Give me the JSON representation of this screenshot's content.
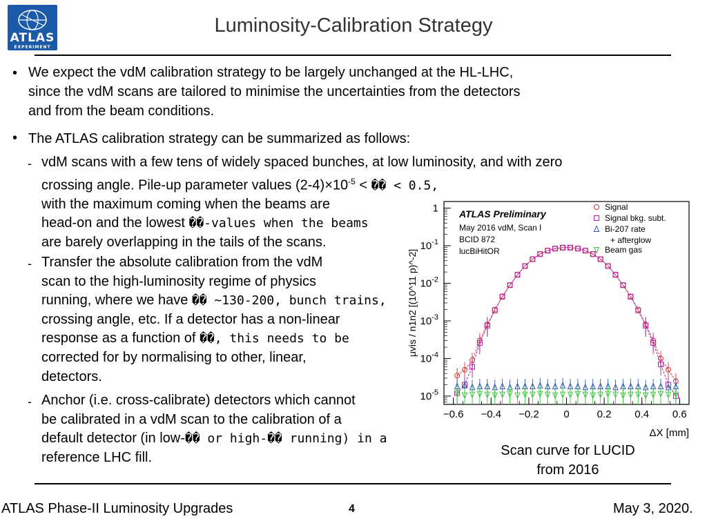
{
  "header": {
    "logo_text": "ATLAS",
    "logo_subtext": "EXPERIMENT",
    "title": "Luminosity-Calibration Strategy"
  },
  "body": {
    "bullet_symbol": "•",
    "dash_symbol": "-",
    "bullet1": {
      "lines": [
        "We expect the vdM calibration strategy to be largely unchanged at the HL-LHC,",
        "since the vdM scans are tailored to minimise the uncertainties from the detectors",
        "and from the beam conditions."
      ]
    },
    "bullet2": {
      "text": "The ATLAS calibration strategy can be summarized as follows:"
    },
    "sub1": {
      "line1": "vdM scans with a few tens of widely spaced bunches, at low luminosity, and with zero",
      "line2_a": "crossing angle. Pile-up parameter values (2-4)×10",
      "line2_sup": "-5",
      "line2_b": " < ",
      "line2_mono": "�� < 0.5,",
      "line3": "with the maximum coming when the beams are",
      "line4_a": "head-on and the lowest ",
      "line4_mono": "��-values when the beams",
      "line5": "are barely overlapping in the tails of the scans."
    },
    "sub2": {
      "line1": "Transfer the absolute calibration from the vdM",
      "line2": "scan to the high-luminosity regime of physics",
      "line3_a": "running, where we have ",
      "line3_mono": "�� ~130-200, bunch trains,",
      "line4": "crossing angle, etc. If a detector has a non-linear",
      "line5_a": "response as a function of ",
      "line5_mono": "��, this needs to be",
      "line6": "corrected for by normalising to other, linear,",
      "line7": "detectors."
    },
    "sub3": {
      "line1": "Anchor (i.e. cross-calibrate) detectors which cannot",
      "line2": "be calibrated in a vdM scan to the calibration of a",
      "line3_a": "default detector (in low-",
      "line3_mono": "�� or high-�� running) in a",
      "line4": "reference LHC fill."
    }
  },
  "caption": {
    "line1": "Scan curve for LUCID",
    "line2": "from 2016"
  },
  "footer": {
    "left": "ATLAS Phase-II Luminosity Upgrades",
    "page": "4",
    "date": "May 3, 2020."
  },
  "chart_data": {
    "type": "scatter",
    "xlabel": "ΔX [mm]",
    "ylabel": "μvis / n1n2 [(10^11 p)^-2]",
    "xlim": [
      -0.65,
      0.65
    ],
    "ylim": [
      6e-06,
      1.5
    ],
    "yscale": "log",
    "xticks": [
      "−0.6",
      "−0.4",
      "−0.2",
      "0",
      "0.2",
      "0.4",
      "0.6"
    ],
    "yticks": [
      "1",
      "10^-1",
      "10^-2",
      "10^-3",
      "10^-4",
      "10^-5"
    ],
    "annotations": [
      "ATLAS Preliminary",
      "May 2016 vdM, Scan I",
      "BCID 872",
      "lucBiHitOR"
    ],
    "legend_position": "top-right",
    "series": [
      {
        "name": "Signal",
        "color": "#d23232",
        "marker": "circle",
        "points": [
          [
            -0.58,
            3.5e-05
          ],
          [
            -0.54,
            5e-05
          ],
          [
            -0.5,
            9e-05
          ],
          [
            -0.46,
            0.0003
          ],
          [
            -0.42,
            0.0008
          ],
          [
            -0.38,
            0.002
          ],
          [
            -0.34,
            0.0045
          ],
          [
            -0.3,
            0.009
          ],
          [
            -0.26,
            0.017
          ],
          [
            -0.22,
            0.029
          ],
          [
            -0.18,
            0.044
          ],
          [
            -0.14,
            0.06
          ],
          [
            -0.1,
            0.074
          ],
          [
            -0.06,
            0.084
          ],
          [
            -0.02,
            0.089
          ],
          [
            0.02,
            0.089
          ],
          [
            0.06,
            0.084
          ],
          [
            0.1,
            0.074
          ],
          [
            0.14,
            0.06
          ],
          [
            0.18,
            0.044
          ],
          [
            0.22,
            0.029
          ],
          [
            0.26,
            0.017
          ],
          [
            0.3,
            0.009
          ],
          [
            0.34,
            0.0045
          ],
          [
            0.38,
            0.002
          ],
          [
            0.42,
            0.0008
          ],
          [
            0.46,
            0.0003
          ],
          [
            0.5,
            0.0001
          ],
          [
            0.54,
            5e-05
          ],
          [
            0.58,
            2.5e-05
          ]
        ]
      },
      {
        "name": "Signal bkg. subt.",
        "color": "#b01ca8",
        "marker": "square",
        "points": [
          [
            -0.58,
            1.2e-05
          ],
          [
            -0.54,
            2e-05
          ],
          [
            -0.5,
            6e-05
          ],
          [
            -0.46,
            0.00026
          ],
          [
            -0.42,
            0.00075
          ],
          [
            -0.38,
            0.0019
          ],
          [
            -0.34,
            0.0044
          ],
          [
            -0.3,
            0.0089
          ],
          [
            -0.26,
            0.0168
          ],
          [
            -0.22,
            0.0288
          ],
          [
            -0.18,
            0.0438
          ],
          [
            -0.14,
            0.0598
          ],
          [
            -0.1,
            0.0738
          ],
          [
            -0.06,
            0.0838
          ],
          [
            -0.02,
            0.0888
          ],
          [
            0.02,
            0.0888
          ],
          [
            0.06,
            0.0838
          ],
          [
            0.1,
            0.0738
          ],
          [
            0.14,
            0.0598
          ],
          [
            0.18,
            0.0438
          ],
          [
            0.22,
            0.0288
          ],
          [
            0.26,
            0.0168
          ],
          [
            0.3,
            0.0089
          ],
          [
            0.34,
            0.0044
          ],
          [
            0.38,
            0.0019
          ],
          [
            0.42,
            0.00075
          ],
          [
            0.46,
            0.00026
          ],
          [
            0.5,
            7e-05
          ],
          [
            0.54,
            2e-05
          ],
          [
            0.58,
            1e-05
          ]
        ]
      },
      {
        "name": "Bi-207 rate + afterglow",
        "color": "#3057b0",
        "marker": "triangle-up",
        "points": [
          [
            -0.58,
            1.8e-05
          ],
          [
            -0.54,
            1.9e-05
          ],
          [
            -0.5,
            1.7e-05
          ],
          [
            -0.46,
            1.8e-05
          ],
          [
            -0.42,
            1.8e-05
          ],
          [
            -0.38,
            1.7e-05
          ],
          [
            -0.34,
            1.8e-05
          ],
          [
            -0.3,
            1.7e-05
          ],
          [
            -0.26,
            1.8e-05
          ],
          [
            -0.22,
            1.8e-05
          ],
          [
            -0.18,
            1.8e-05
          ],
          [
            -0.14,
            1.9e-05
          ],
          [
            -0.1,
            1.8e-05
          ],
          [
            -0.06,
            1.8e-05
          ],
          [
            -0.02,
            1.9e-05
          ],
          [
            0.02,
            1.8e-05
          ],
          [
            0.06,
            1.8e-05
          ],
          [
            0.1,
            1.7e-05
          ],
          [
            0.14,
            1.8e-05
          ],
          [
            0.18,
            1.8e-05
          ],
          [
            0.22,
            1.8e-05
          ],
          [
            0.26,
            1.7e-05
          ],
          [
            0.3,
            1.8e-05
          ],
          [
            0.34,
            1.8e-05
          ],
          [
            0.38,
            1.8e-05
          ],
          [
            0.42,
            1.7e-05
          ],
          [
            0.46,
            1.8e-05
          ],
          [
            0.5,
            1.8e-05
          ],
          [
            0.54,
            1.7e-05
          ],
          [
            0.58,
            1.8e-05
          ]
        ]
      },
      {
        "name": "Beam gas",
        "color": "#3cc83c",
        "marker": "triangle-down",
        "points": [
          [
            -0.58,
            1.2e-05
          ],
          [
            -0.54,
            1.05e-05
          ],
          [
            -0.5,
            1.1e-05
          ],
          [
            -0.46,
            1.15e-05
          ],
          [
            -0.42,
            1.1e-05
          ],
          [
            -0.38,
            1.05e-05
          ],
          [
            -0.34,
            1.1e-05
          ],
          [
            -0.3,
            1.15e-05
          ],
          [
            -0.26,
            1.05e-05
          ],
          [
            -0.22,
            1.1e-05
          ],
          [
            -0.18,
            1.1e-05
          ],
          [
            -0.14,
            1.15e-05
          ],
          [
            -0.1,
            1.1e-05
          ],
          [
            -0.06,
            1.05e-05
          ],
          [
            -0.02,
            1.1e-05
          ],
          [
            0.02,
            1.1e-05
          ],
          [
            0.06,
            1.15e-05
          ],
          [
            0.1,
            1.1e-05
          ],
          [
            0.14,
            1.05e-05
          ],
          [
            0.18,
            1.1e-05
          ],
          [
            0.22,
            1.15e-05
          ],
          [
            0.26,
            1.1e-05
          ],
          [
            0.3,
            1.05e-05
          ],
          [
            0.34,
            1.1e-05
          ],
          [
            0.38,
            1.1e-05
          ],
          [
            0.42,
            1.05e-05
          ],
          [
            0.46,
            1.1e-05
          ],
          [
            0.5,
            1.15e-05
          ],
          [
            0.54,
            1.1e-05
          ],
          [
            0.58,
            1.1e-05
          ]
        ]
      }
    ]
  }
}
